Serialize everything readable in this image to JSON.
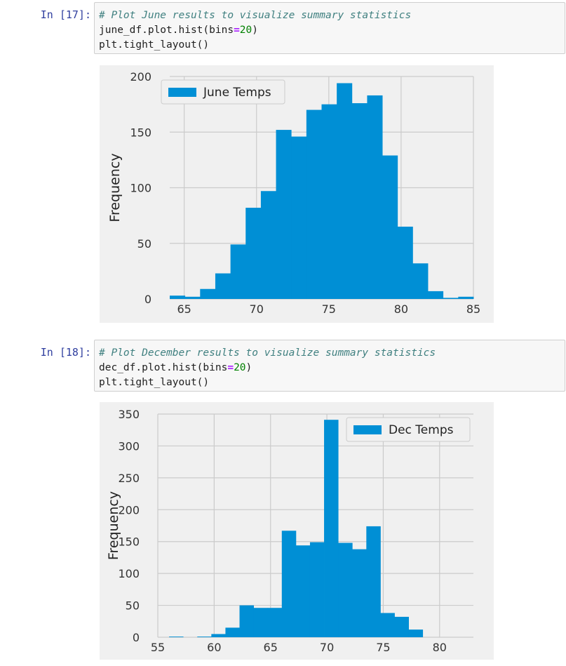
{
  "cells": [
    {
      "prompt": "In [17]:",
      "code": {
        "comment": "# Plot June results to visualize summary statistics",
        "l2_pre": "june_df.plot.hist(bins",
        "l2_op": "=",
        "l2_num": "20",
        "l2_post": ")",
        "l3": "plt.tight_layout()"
      }
    },
    {
      "prompt": "In [18]:",
      "code": {
        "comment": "# Plot December results to visualize summary statistics",
        "l2_pre": "dec_df.plot.hist(bins",
        "l2_op": "=",
        "l2_num": "20",
        "l2_post": ")",
        "l3": "plt.tight_layout()"
      }
    }
  ],
  "colors": {
    "bar": "#008fd5",
    "axes_bg": "#f0f0f0",
    "grid": "#cbcbcb",
    "prompt": "#303F9F"
  },
  "chart_data": [
    {
      "type": "bar",
      "ylabel": "Frequency",
      "legend": "June Temps",
      "legend_position": "top-left",
      "xlim": [
        64,
        85
      ],
      "ylim": [
        0,
        200
      ],
      "xticks": [
        65,
        70,
        75,
        80,
        85
      ],
      "yticks": [
        0,
        50,
        100,
        150,
        200
      ],
      "grid": true,
      "bin_edges": [
        64,
        65.05,
        66.1,
        67.15,
        68.2,
        69.25,
        70.3,
        71.35,
        72.4,
        73.45,
        74.5,
        75.55,
        76.6,
        77.65,
        78.7,
        79.75,
        80.8,
        81.85,
        82.9,
        83.95,
        85
      ],
      "values": [
        3,
        2,
        9,
        23,
        49,
        82,
        97,
        152,
        146,
        170,
        175,
        194,
        176,
        183,
        129,
        65,
        32,
        7,
        1,
        2
      ]
    },
    {
      "type": "bar",
      "ylabel": "Frequency",
      "legend": "Dec Temps",
      "legend_position": "top-right",
      "xlim": [
        55,
        83
      ],
      "ylim": [
        0,
        350
      ],
      "xticks": [
        55,
        60,
        65,
        70,
        75,
        80
      ],
      "yticks": [
        0,
        50,
        100,
        150,
        200,
        250,
        300,
        350
      ],
      "grid": true,
      "bin_edges": [
        56,
        57.25,
        58.5,
        59.75,
        61,
        62.25,
        63.5,
        64.75,
        66,
        67.25,
        68.5,
        69.75,
        71,
        72.25,
        73.5,
        74.75,
        76,
        77.25,
        78.5,
        79.75,
        81
      ],
      "values": [
        1,
        0,
        1,
        5,
        15,
        50,
        46,
        46,
        167,
        144,
        149,
        341,
        148,
        138,
        174,
        38,
        32,
        12,
        0,
        0
      ]
    }
  ]
}
